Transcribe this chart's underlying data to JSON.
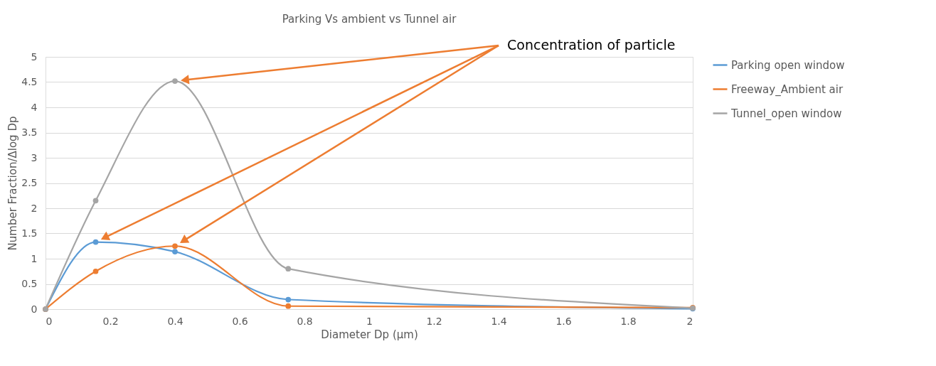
{
  "chart_data": {
    "type": "line",
    "title": "Parking Vs ambient vs Tunnel air",
    "xlabel": "Diameter Dp   (µm)",
    "ylabel": "Number Fraction/Δlog Dp",
    "x": [
      0,
      0.155,
      0.4,
      0.75,
      2
    ],
    "series": [
      {
        "name": "Parking open window",
        "color": "#5b9bd5",
        "values": [
          0,
          1.33,
          1.14,
          0.19,
          0.01
        ]
      },
      {
        "name": "Freeway_Ambient air",
        "color": "#ed7d31",
        "values": [
          0,
          0.75,
          1.25,
          0.06,
          0.03
        ]
      },
      {
        "name": "Tunnel_open window",
        "color": "#a5a5a5",
        "values": [
          0,
          2.15,
          4.52,
          0.8,
          0.02
        ]
      }
    ],
    "annotations": [
      "Concentration of particle"
    ],
    "xlim": [
      0,
      2
    ],
    "xticks": [
      0,
      0.2,
      0.4,
      0.6,
      0.8,
      1,
      1.2,
      1.4,
      1.6,
      1.8,
      2
    ],
    "ylim": [
      0,
      5
    ],
    "yticks": [
      0,
      0.5,
      1,
      1.5,
      2,
      2.5,
      3,
      3.5,
      4,
      4.5,
      5
    ],
    "grid": "y",
    "legend": "right",
    "marker": "circle",
    "line_style": "solid"
  }
}
